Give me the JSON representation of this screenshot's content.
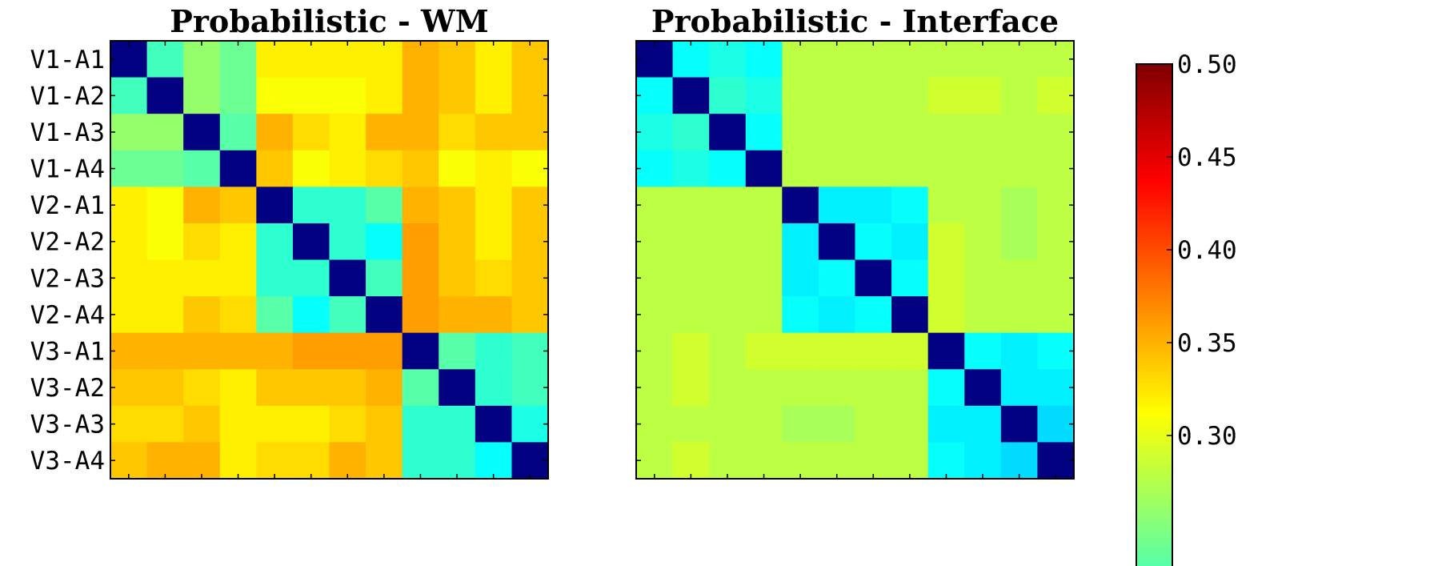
{
  "chart_data": [
    {
      "type": "heatmap",
      "title": "Probabilistic - WM",
      "row_labels": [
        "V1-A1",
        "V1-A2",
        "V1-A3",
        "V1-A4",
        "V2-A1",
        "V2-A2",
        "V2-A3",
        "V2-A4",
        "V3-A1",
        "V3-A2",
        "V3-A3",
        "V3-A4"
      ],
      "matrix": [
        [
          0.0,
          0.22,
          0.26,
          0.24,
          0.32,
          0.32,
          0.32,
          0.32,
          0.35,
          0.34,
          0.32,
          0.34
        ],
        [
          0.22,
          0.0,
          0.26,
          0.24,
          0.31,
          0.31,
          0.31,
          0.32,
          0.35,
          0.34,
          0.32,
          0.34
        ],
        [
          0.26,
          0.26,
          0.0,
          0.23,
          0.35,
          0.33,
          0.32,
          0.35,
          0.35,
          0.33,
          0.34,
          0.34
        ],
        [
          0.24,
          0.24,
          0.23,
          0.0,
          0.34,
          0.31,
          0.32,
          0.33,
          0.34,
          0.31,
          0.32,
          0.31
        ],
        [
          0.32,
          0.31,
          0.35,
          0.34,
          0.0,
          0.21,
          0.21,
          0.23,
          0.35,
          0.34,
          0.32,
          0.34
        ],
        [
          0.32,
          0.31,
          0.33,
          0.32,
          0.21,
          0.0,
          0.21,
          0.19,
          0.36,
          0.34,
          0.32,
          0.34
        ],
        [
          0.32,
          0.32,
          0.32,
          0.32,
          0.21,
          0.21,
          0.0,
          0.22,
          0.36,
          0.34,
          0.33,
          0.34
        ],
        [
          0.32,
          0.32,
          0.34,
          0.33,
          0.23,
          0.19,
          0.22,
          0.0,
          0.36,
          0.35,
          0.35,
          0.34
        ],
        [
          0.35,
          0.35,
          0.35,
          0.35,
          0.35,
          0.36,
          0.36,
          0.36,
          0.0,
          0.23,
          0.21,
          0.22
        ],
        [
          0.34,
          0.34,
          0.33,
          0.32,
          0.34,
          0.34,
          0.34,
          0.35,
          0.23,
          0.0,
          0.21,
          0.22
        ],
        [
          0.33,
          0.33,
          0.34,
          0.32,
          0.32,
          0.32,
          0.33,
          0.34,
          0.21,
          0.21,
          0.0,
          0.2
        ],
        [
          0.34,
          0.35,
          0.35,
          0.32,
          0.33,
          0.33,
          0.35,
          0.34,
          0.21,
          0.21,
          0.19,
          0.0
        ]
      ]
    },
    {
      "type": "heatmap",
      "title": "Probabilistic - Interface",
      "row_labels": [],
      "matrix": [
        [
          0.0,
          0.19,
          0.2,
          0.19,
          0.28,
          0.28,
          0.28,
          0.28,
          0.28,
          0.28,
          0.28,
          0.28
        ],
        [
          0.19,
          0.0,
          0.21,
          0.2,
          0.28,
          0.28,
          0.28,
          0.28,
          0.29,
          0.29,
          0.28,
          0.29
        ],
        [
          0.2,
          0.21,
          0.0,
          0.19,
          0.28,
          0.28,
          0.28,
          0.28,
          0.28,
          0.28,
          0.28,
          0.28
        ],
        [
          0.19,
          0.2,
          0.19,
          0.0,
          0.28,
          0.28,
          0.28,
          0.28,
          0.28,
          0.28,
          0.28,
          0.28
        ],
        [
          0.28,
          0.28,
          0.28,
          0.28,
          0.0,
          0.18,
          0.18,
          0.19,
          0.28,
          0.28,
          0.27,
          0.28
        ],
        [
          0.28,
          0.28,
          0.28,
          0.28,
          0.18,
          0.0,
          0.19,
          0.18,
          0.29,
          0.28,
          0.27,
          0.28
        ],
        [
          0.28,
          0.28,
          0.28,
          0.28,
          0.18,
          0.19,
          0.0,
          0.19,
          0.29,
          0.28,
          0.28,
          0.28
        ],
        [
          0.28,
          0.28,
          0.28,
          0.28,
          0.19,
          0.18,
          0.19,
          0.0,
          0.29,
          0.28,
          0.28,
          0.28
        ],
        [
          0.28,
          0.29,
          0.28,
          0.29,
          0.29,
          0.29,
          0.29,
          0.29,
          0.0,
          0.19,
          0.18,
          0.19
        ],
        [
          0.28,
          0.29,
          0.28,
          0.28,
          0.28,
          0.28,
          0.28,
          0.28,
          0.19,
          0.0,
          0.18,
          0.18
        ],
        [
          0.28,
          0.28,
          0.28,
          0.28,
          0.27,
          0.27,
          0.28,
          0.28,
          0.18,
          0.18,
          0.0,
          0.17
        ],
        [
          0.28,
          0.29,
          0.28,
          0.28,
          0.28,
          0.28,
          0.28,
          0.28,
          0.19,
          0.18,
          0.17,
          0.0
        ]
      ]
    }
  ],
  "colorbar": {
    "ticks": [
      "0.50",
      "0.45",
      "0.40",
      "0.35",
      "0.30"
    ],
    "tick_values": [
      0.5,
      0.45,
      0.4,
      0.35,
      0.3
    ],
    "vmin": 0.0,
    "vmax": 0.5,
    "colormap": "jet"
  }
}
